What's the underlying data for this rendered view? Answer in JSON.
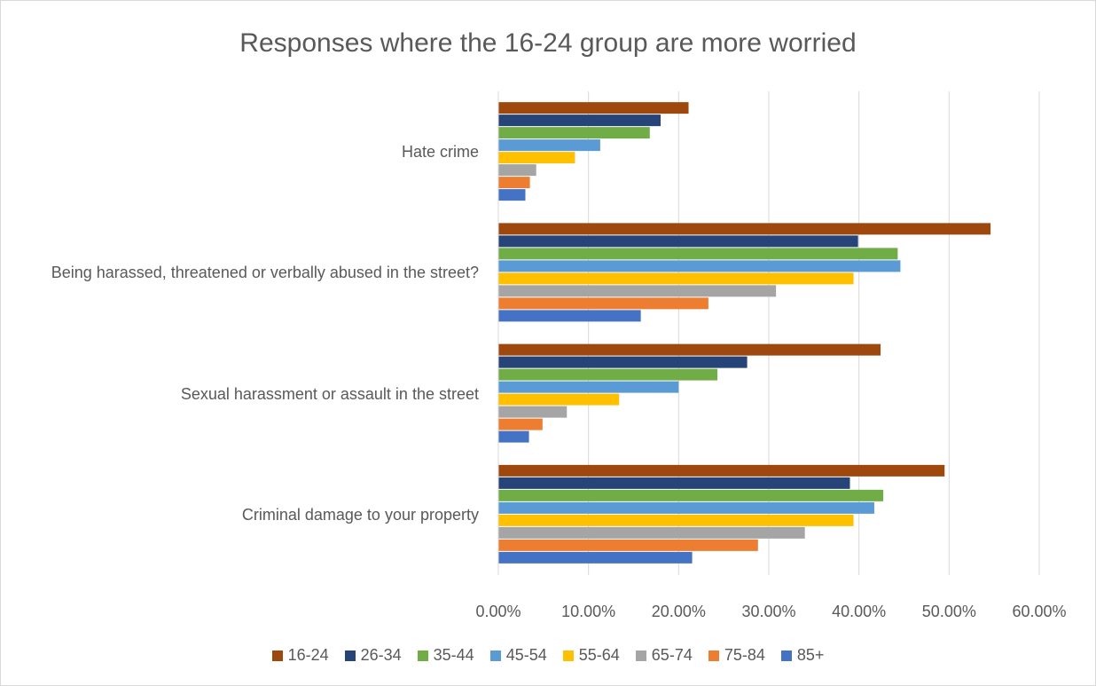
{
  "chart_data": {
    "type": "hbar",
    "title": "Responses where the 16-24 group are more worried",
    "categories": [
      "Hate crime",
      "Being harassed, threatened or verbally abused in the street?",
      "Sexual harassment or assault in the street",
      "Criminal damage to your property"
    ],
    "series": [
      {
        "name": "16-24",
        "color": "#9e480e",
        "values": [
          21.1,
          54.6,
          42.4,
          49.5
        ]
      },
      {
        "name": "26-34",
        "color": "#264478",
        "values": [
          18.0,
          39.9,
          27.6,
          39.0
        ]
      },
      {
        "name": "35-44",
        "color": "#70ad47",
        "values": [
          16.8,
          44.3,
          24.3,
          42.7
        ]
      },
      {
        "name": "45-54",
        "color": "#5b9bd5",
        "values": [
          11.3,
          44.6,
          20.0,
          41.7
        ]
      },
      {
        "name": "55-64",
        "color": "#ffc000",
        "values": [
          8.5,
          39.4,
          13.4,
          39.4
        ]
      },
      {
        "name": "65-74",
        "color": "#a5a5a5",
        "values": [
          4.2,
          30.8,
          7.6,
          34.0
        ]
      },
      {
        "name": "75-84",
        "color": "#ed7d31",
        "values": [
          3.5,
          23.3,
          4.9,
          28.8
        ]
      },
      {
        "name": "85+",
        "color": "#4472c4",
        "values": [
          3.0,
          15.8,
          3.4,
          21.5
        ]
      }
    ],
    "xlim": [
      0,
      60
    ],
    "xticks": [
      {
        "value": 0,
        "label": "0.00%"
      },
      {
        "value": 10,
        "label": "10.00%"
      },
      {
        "value": 20,
        "label": "20.00%"
      },
      {
        "value": 30,
        "label": "30.00%"
      },
      {
        "value": 40,
        "label": "40.00%"
      },
      {
        "value": 50,
        "label": "50.00%"
      },
      {
        "value": 60,
        "label": "60.00%"
      }
    ],
    "grid": true,
    "legend": "bottom"
  }
}
